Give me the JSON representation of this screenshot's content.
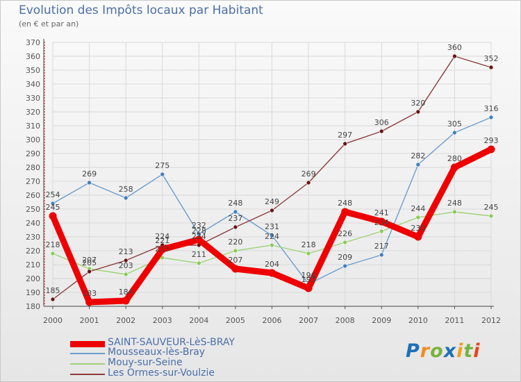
{
  "header": {
    "title": "Evolution des Impôts locaux par Habitant",
    "subtitle": "(en € et par an)"
  },
  "logo": {
    "text": "Proxiti",
    "letters": [
      {
        "ch": "P",
        "color": "#1f6fb8"
      },
      {
        "ch": "r",
        "color": "#f08c1e"
      },
      {
        "ch": "o",
        "color": "#78b43c"
      },
      {
        "ch": "x",
        "color": "#1f6fb8"
      },
      {
        "ch": "i",
        "color": "#f0a01e"
      },
      {
        "ch": "t",
        "color": "#78b43c"
      },
      {
        "ch": "i",
        "color": "#e8451e"
      }
    ]
  },
  "chart_data": {
    "type": "line",
    "title": "Evolution des Impôts locaux par Habitant",
    "subtitle": "(en € et par an)",
    "x": [
      2000,
      2001,
      2002,
      2003,
      2004,
      2005,
      2006,
      2007,
      2008,
      2009,
      2010,
      2011,
      2012
    ],
    "ylim": [
      180,
      370
    ],
    "yticks": [
      180,
      190,
      200,
      210,
      220,
      230,
      240,
      250,
      260,
      270,
      280,
      290,
      300,
      310,
      320,
      330,
      340,
      350,
      360,
      370
    ],
    "grid": true,
    "legend_position": "bottom-left",
    "series": [
      {
        "name": "SAINT-SAUVEUR-LèS-BRAY",
        "color": "#ee0000",
        "marker": "#ee0000",
        "bold": true,
        "values": [
          245,
          183,
          184,
          221,
          228,
          207,
          204,
          193,
          248,
          241,
          230,
          280,
          293
        ]
      },
      {
        "name": "Mousseaux-lès-Bray",
        "color": "#6b9dcf",
        "marker": "#3f7fc4",
        "bold": false,
        "values": [
          254,
          269,
          258,
          275,
          232,
          248,
          231,
          196,
          209,
          217,
          282,
          305,
          316
        ]
      },
      {
        "name": "Mouy-sur-Seine",
        "color": "#9ed27a",
        "marker": "#88cc55",
        "bold": false,
        "values": [
          218,
          207,
          203,
          215,
          211,
          220,
          224,
          218,
          226,
          234,
          244,
          248,
          245
        ]
      },
      {
        "name": "Les Ormes-sur-Voulzie",
        "color": "#8b3a3a",
        "marker": "#6b1414",
        "bold": false,
        "values": [
          185,
          205,
          213,
          224,
          224,
          237,
          249,
          269,
          297,
          306,
          320,
          360,
          352
        ]
      }
    ]
  }
}
